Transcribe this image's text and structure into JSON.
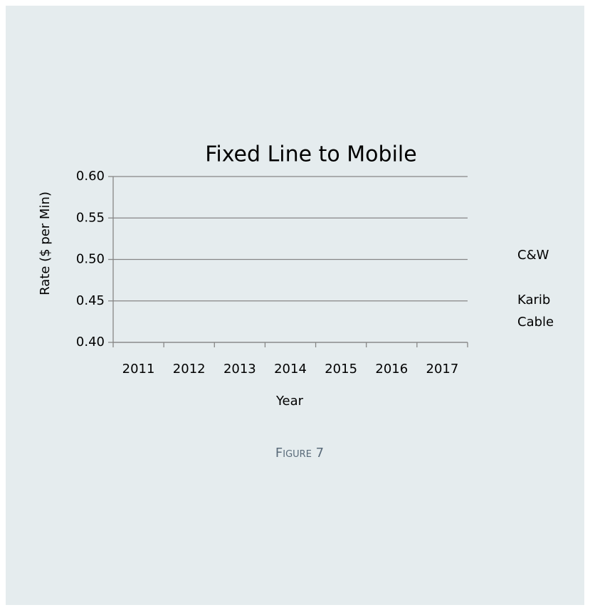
{
  "chart_data": {
    "type": "line",
    "title": "Fixed Line to Mobile",
    "x_label": "Year",
    "y_label": "Rate ($ per Min)",
    "categories": [
      "2011",
      "2012",
      "2013",
      "2014",
      "2015",
      "2016",
      "2017"
    ],
    "series": [
      {
        "name": "C&W",
        "values": [
          null,
          null,
          null,
          null,
          null,
          null,
          null
        ]
      },
      {
        "name": "Karib Cable",
        "values": [
          null,
          null,
          null,
          null,
          null,
          null,
          null
        ]
      }
    ],
    "ylim": [
      0.4,
      0.6
    ],
    "yticks": [
      {
        "value": 0.4,
        "label": "0.40"
      },
      {
        "value": 0.45,
        "label": "0.45"
      },
      {
        "value": 0.5,
        "label": "0.50"
      },
      {
        "value": 0.55,
        "label": "0.55"
      },
      {
        "value": 0.6,
        "label": "0.60"
      }
    ],
    "grid": true,
    "legend": "right"
  },
  "caption": "Figure 7"
}
